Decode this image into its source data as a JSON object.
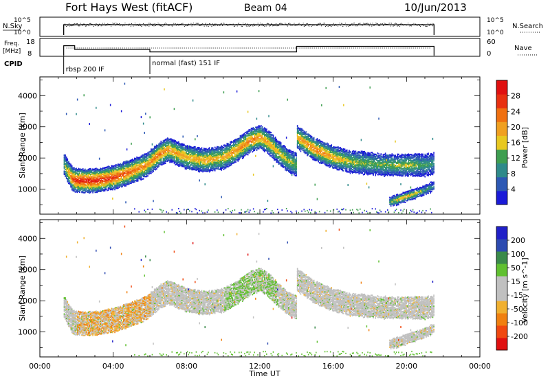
{
  "header": {
    "station": "Fort Hays West (fitACF)",
    "beam": "Beam 04",
    "date": "10/Jun/2013"
  },
  "noise_panel": {
    "left_label": "N.Sky",
    "right_label": "N.Search",
    "left_ticks": [
      "10^5",
      "10^0"
    ],
    "right_ticks": [
      "10^5",
      "10^0"
    ]
  },
  "freq_panel": {
    "left_label_1": "Freq.",
    "left_label_2": "[MHz]",
    "right_label": "Nave",
    "left_ticks": [
      "18",
      "8"
    ],
    "right_ticks": [
      "60",
      "0"
    ],
    "freq_segments": [
      {
        "start_hour": 1.3,
        "end_hour": 1.9,
        "value": 16
      },
      {
        "start_hour": 1.9,
        "end_hour": 6.0,
        "value": 13
      },
      {
        "start_hour": 6.0,
        "end_hour": 14.0,
        "value": 11
      },
      {
        "start_hour": 14.0,
        "end_hour": 21.5,
        "value": 15.5
      }
    ]
  },
  "cpid": {
    "label": "CPID",
    "modes": [
      {
        "label": "rbsp 200 IF",
        "start_hour": 1.3
      },
      {
        "label": "normal (fast) 151 IF",
        "start_hour": 6.0
      }
    ]
  },
  "colors": {
    "power_scale": [
      "#1a1ad8",
      "#2c58b4",
      "#2e8a8a",
      "#3e9e50",
      "#e8c820",
      "#f0a020",
      "#f07010",
      "#e83010",
      "#e01010"
    ],
    "velocity_scale": [
      "#e01010",
      "#f04810",
      "#f08010",
      "#f0b030",
      "#c0c0c0",
      "#c0c0c0",
      "#60c030",
      "#3a8a4a",
      "#2c4ab0",
      "#2020c8"
    ]
  },
  "chart_data": [
    {
      "type": "heatmap",
      "name": "power",
      "ylabel": "Slant Range [km]",
      "yticks": [
        1000,
        2000,
        3000,
        4000
      ],
      "ylim": [
        200,
        4600
      ],
      "xlim_hours": [
        0,
        24
      ],
      "colorbar_label": "Power [dB]",
      "colorbar_ticks": [
        "4",
        "8",
        "12",
        "16",
        "20",
        "24",
        "28"
      ],
      "colorbar_range": [
        0,
        32
      ],
      "echo_band": {
        "time_hours": [
          1.3,
          1.8,
          2.2,
          3.0,
          4.0,
          5.0,
          5.8,
          6.5,
          7.0,
          8.0,
          9.0,
          10.0,
          10.5,
          11.0,
          11.5,
          12.0,
          12.5,
          13.0,
          13.5,
          14.0
        ],
        "range_km": [
          1800,
          1330,
          1300,
          1300,
          1400,
          1600,
          1800,
          2150,
          2300,
          2050,
          1950,
          2050,
          2200,
          2400,
          2600,
          2700,
          2500,
          2200,
          1950,
          1800
        ],
        "peak_power_db": [
          12,
          28,
          30,
          30,
          28,
          25,
          22,
          24,
          22,
          20,
          20,
          20,
          22,
          23,
          24,
          22,
          20,
          18,
          16,
          14
        ]
      },
      "echo_band_2": {
        "time_hours": [
          14.0,
          15.0,
          16.0,
          17.0,
          18.0,
          19.0,
          20.0,
          21.0,
          21.5
        ],
        "range_km": [
          2700,
          2300,
          2050,
          1900,
          1850,
          1800,
          1800,
          1800,
          1850
        ],
        "peak_power_db": [
          20,
          24,
          20,
          16,
          14,
          14,
          16,
          12,
          10
        ]
      },
      "echo_band_3": {
        "time_hours": [
          19.0,
          19.5,
          20.0,
          20.5,
          21.0,
          21.5
        ],
        "range_km": [
          600,
          700,
          800,
          900,
          1000,
          1150
        ],
        "peak_power_db": [
          12,
          18,
          20,
          16,
          12,
          8
        ]
      }
    },
    {
      "type": "heatmap",
      "name": "velocity",
      "ylabel": "Slant Range [km]",
      "yticks": [
        1000,
        2000,
        3000,
        4000
      ],
      "ylim": [
        200,
        4600
      ],
      "xlim_hours": [
        0,
        24
      ],
      "colorbar_label": "Velocity [m s^-1]",
      "colorbar_ticks": [
        "-200",
        "-100",
        "-50",
        "-15",
        "15",
        "50",
        "100",
        "200"
      ],
      "xticks": [
        "00:00",
        "04:00",
        "08:00",
        "12:00",
        "16:00",
        "20:00",
        "00:00"
      ],
      "xlabel": "Time UT"
    }
  ]
}
